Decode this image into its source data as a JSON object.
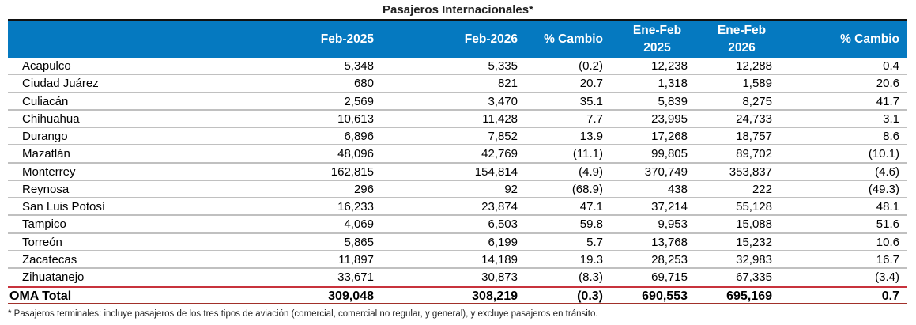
{
  "title": "Pasajeros Internacionales*",
  "headers": {
    "c1": "Feb-2025",
    "c2": "Feb-2026",
    "c3": "% Cambio",
    "c4_l1": "Ene-Feb",
    "c4_l2": "2025",
    "c5_l1": "Ene-Feb",
    "c5_l2": "2026",
    "c6": "% Cambio"
  },
  "rows": [
    [
      "Acapulco",
      "5,348",
      "5,335",
      "(0.2)",
      "12,238",
      "12,288",
      "0.4"
    ],
    [
      "Ciudad Juárez",
      "680",
      "821",
      "20.7",
      "1,318",
      "1,589",
      "20.6"
    ],
    [
      "Culiacán",
      "2,569",
      "3,470",
      "35.1",
      "5,839",
      "8,275",
      "41.7"
    ],
    [
      "Chihuahua",
      "10,613",
      "11,428",
      "7.7",
      "23,995",
      "24,733",
      "3.1"
    ],
    [
      "Durango",
      "6,896",
      "7,852",
      "13.9",
      "17,268",
      "18,757",
      "8.6"
    ],
    [
      "Mazatlán",
      "48,096",
      "42,769",
      "(11.1)",
      "99,805",
      "89,702",
      "(10.1)"
    ],
    [
      "Monterrey",
      "162,815",
      "154,814",
      "(4.9)",
      "370,749",
      "353,837",
      "(4.6)"
    ],
    [
      "Reynosa",
      "296",
      "92",
      "(68.9)",
      "438",
      "222",
      "(49.3)"
    ],
    [
      "San Luis Potosí",
      "16,233",
      "23,874",
      "47.1",
      "37,214",
      "55,128",
      "48.1"
    ],
    [
      "Tampico",
      "4,069",
      "6,503",
      "59.8",
      "9,953",
      "15,088",
      "51.6"
    ],
    [
      "Torreón",
      "5,865",
      "6,199",
      "5.7",
      "13,768",
      "15,232",
      "10.6"
    ],
    [
      "Zacatecas",
      "11,897",
      "14,189",
      "19.3",
      "28,253",
      "32,983",
      "16.7"
    ],
    [
      "Zihuatanejo",
      "33,671",
      "30,873",
      "(8.3)",
      "69,715",
      "67,335",
      "(3.4)"
    ]
  ],
  "total": [
    "OMA Total",
    "309,048",
    "308,219",
    "(0.3)",
    "690,553",
    "695,169",
    "0.7"
  ],
  "footnote": "* Pasajeros terminales: incluye pasajeros de los tres tipos de aviación (comercial, comercial no regular, y general), y excluye pasajeros en tránsito.",
  "colors": {
    "header_bg": "#0579c0",
    "total_line": "#c8323c",
    "row_line": "#c0c0c0"
  }
}
